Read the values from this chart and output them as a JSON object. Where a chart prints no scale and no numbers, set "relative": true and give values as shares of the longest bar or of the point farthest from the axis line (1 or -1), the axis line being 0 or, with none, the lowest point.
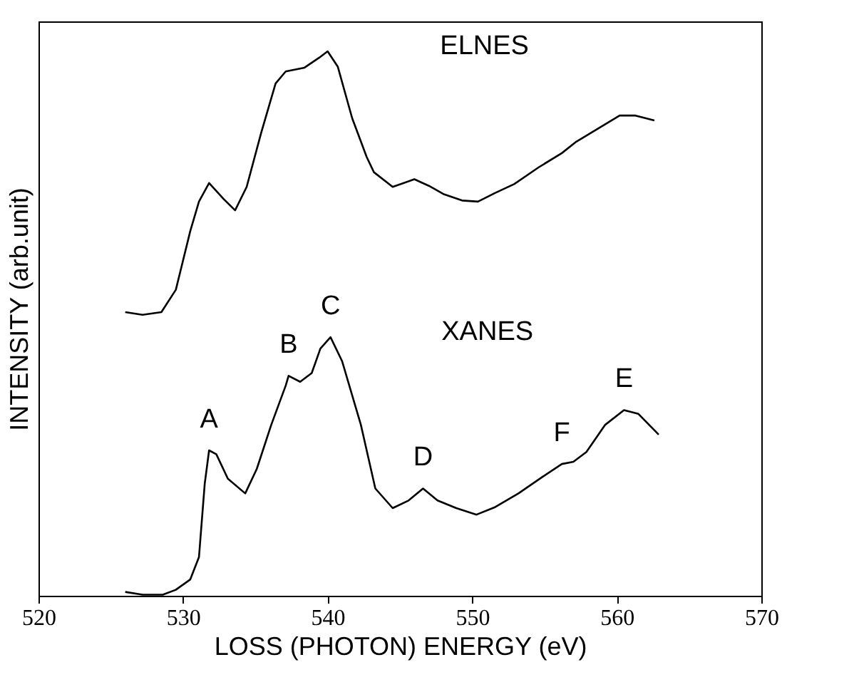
{
  "chart_data": {
    "type": "line",
    "relative": true,
    "xlabel": "LOSS (PHOTON) ENERGY (eV)",
    "ylabel": "INTENSITY (arb.unit)",
    "xlim": [
      520,
      570
    ],
    "xticks": [
      520,
      530,
      540,
      550,
      560,
      570
    ],
    "grid": false,
    "series": [
      {
        "color": "#000000",
        "x": [
          526.0,
          527.2,
          528.5,
          529.5,
          530.5,
          531.1,
          531.8,
          532.8,
          533.6,
          534.4,
          535.4,
          536.4,
          537.1,
          538.4,
          539.4,
          540.0,
          540.7,
          541.7,
          542.7,
          543.2,
          544.5,
          546.0,
          547.0,
          548.0,
          549.3,
          550.4,
          551.6,
          552.9,
          554.6,
          556.2,
          557.2,
          558.2,
          560.2,
          561.3,
          562.6
        ],
        "values": [
          0.521,
          0.516,
          0.521,
          0.562,
          0.67,
          0.724,
          0.758,
          0.729,
          0.708,
          0.751,
          0.85,
          0.941,
          0.963,
          0.97,
          0.988,
          1.0,
          0.972,
          0.877,
          0.806,
          0.778,
          0.751,
          0.765,
          0.753,
          0.738,
          0.726,
          0.724,
          0.74,
          0.756,
          0.787,
          0.813,
          0.834,
          0.85,
          0.882,
          0.882,
          0.873
        ]
      },
      {
        "color": "#000000",
        "x": [
          526.0,
          527.2,
          528.6,
          529.5,
          530.5,
          531.1,
          531.5,
          531.8,
          532.3,
          533.1,
          534.3,
          535.1,
          536.1,
          537.1,
          537.3,
          538.1,
          538.9,
          539.5,
          540.2,
          541.0,
          542.3,
          543.3,
          544.5,
          545.6,
          546.6,
          547.6,
          548.9,
          550.3,
          551.6,
          553.2,
          554.9,
          556.2,
          557.0,
          557.9,
          559.2,
          560.5,
          561.5,
          562.9
        ],
        "values": [
          0.007,
          0.002,
          0.002,
          0.011,
          0.03,
          0.071,
          0.206,
          0.267,
          0.26,
          0.215,
          0.188,
          0.233,
          0.314,
          0.386,
          0.404,
          0.393,
          0.409,
          0.454,
          0.475,
          0.431,
          0.314,
          0.197,
          0.161,
          0.175,
          0.197,
          0.175,
          0.161,
          0.149,
          0.163,
          0.188,
          0.219,
          0.242,
          0.246,
          0.264,
          0.314,
          0.341,
          0.334,
          0.296
        ]
      }
    ],
    "annotations": [
      "ELNES",
      "XANES",
      {
        "text": "A",
        "x": 531.8,
        "y": 0.267
      },
      {
        "text": "B",
        "x": 537.3,
        "y": 0.404
      },
      {
        "text": "C",
        "x": 540.2,
        "y": 0.475
      },
      {
        "text": "D",
        "x": 546.6,
        "y": 0.197
      },
      {
        "text": "F",
        "x": 556.2,
        "y": 0.242
      },
      {
        "text": "E",
        "x": 560.5,
        "y": 0.341
      }
    ]
  }
}
